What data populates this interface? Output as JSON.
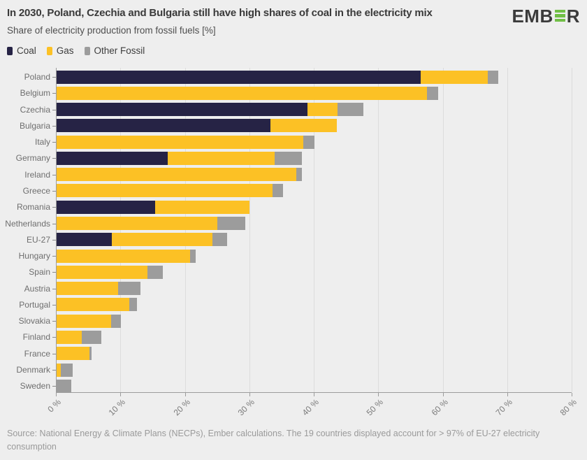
{
  "header": {
    "title": "In 2030, Poland, Czechia and Bulgaria still have high shares of coal in the electricity mix",
    "subtitle": "Share of electricity production from fossil fuels [%]",
    "logo": {
      "prefix": "EMB",
      "suffix": "R",
      "accent_color": "#70bf45"
    }
  },
  "chart_data": {
    "type": "bar",
    "orientation": "horizontal",
    "stacked": true,
    "unit": "%",
    "title": "In 2030, Poland, Czechia and Bulgaria still have high shares of coal in the electricity mix",
    "subtitle": "Share of electricity production from fossil fuels [%]",
    "xlabel": "",
    "ylabel": "",
    "xlim": [
      0,
      80
    ],
    "xticks": [
      0,
      10,
      20,
      30,
      40,
      50,
      60,
      70,
      80
    ],
    "xtick_suffix": " %",
    "grid": true,
    "legend_position": "top-left",
    "categories": [
      "Poland",
      "Belgium",
      "Czechia",
      "Bulgaria",
      "Italy",
      "Germany",
      "Ireland",
      "Greece",
      "Romania",
      "Netherlands",
      "EU-27",
      "Hungary",
      "Spain",
      "Austria",
      "Portugal",
      "Slovakia",
      "Finland",
      "France",
      "Denmark",
      "Sweden"
    ],
    "series": [
      {
        "name": "Coal",
        "color": "#262345",
        "values": [
          56.5,
          0,
          38.9,
          33.2,
          0,
          17.2,
          0,
          0,
          15.3,
          0,
          8.6,
          0,
          0,
          0,
          0,
          0,
          0,
          0,
          0,
          0
        ]
      },
      {
        "name": "Gas",
        "color": "#fcc125",
        "values": [
          10.4,
          57.5,
          4.7,
          10.3,
          38.3,
          16.6,
          37.2,
          33.5,
          14.6,
          24.9,
          15.6,
          20.7,
          14.1,
          9.5,
          11.3,
          8.5,
          3.9,
          5.1,
          0.7,
          0
        ]
      },
      {
        "name": "Other Fossil",
        "color": "#9c9c9c",
        "values": [
          1.6,
          1.7,
          4.0,
          0,
          1.7,
          4.3,
          0.8,
          1.6,
          0,
          4.4,
          2.2,
          0.9,
          2.4,
          3.5,
          1.2,
          1.5,
          3.0,
          0.3,
          1.8,
          2.3
        ]
      }
    ]
  },
  "footer": {
    "source": "Source: National Energy & Climate Plans (NECPs), Ember calculations. The 19 countries displayed account for > 97% of EU-27 electricity consumption"
  }
}
